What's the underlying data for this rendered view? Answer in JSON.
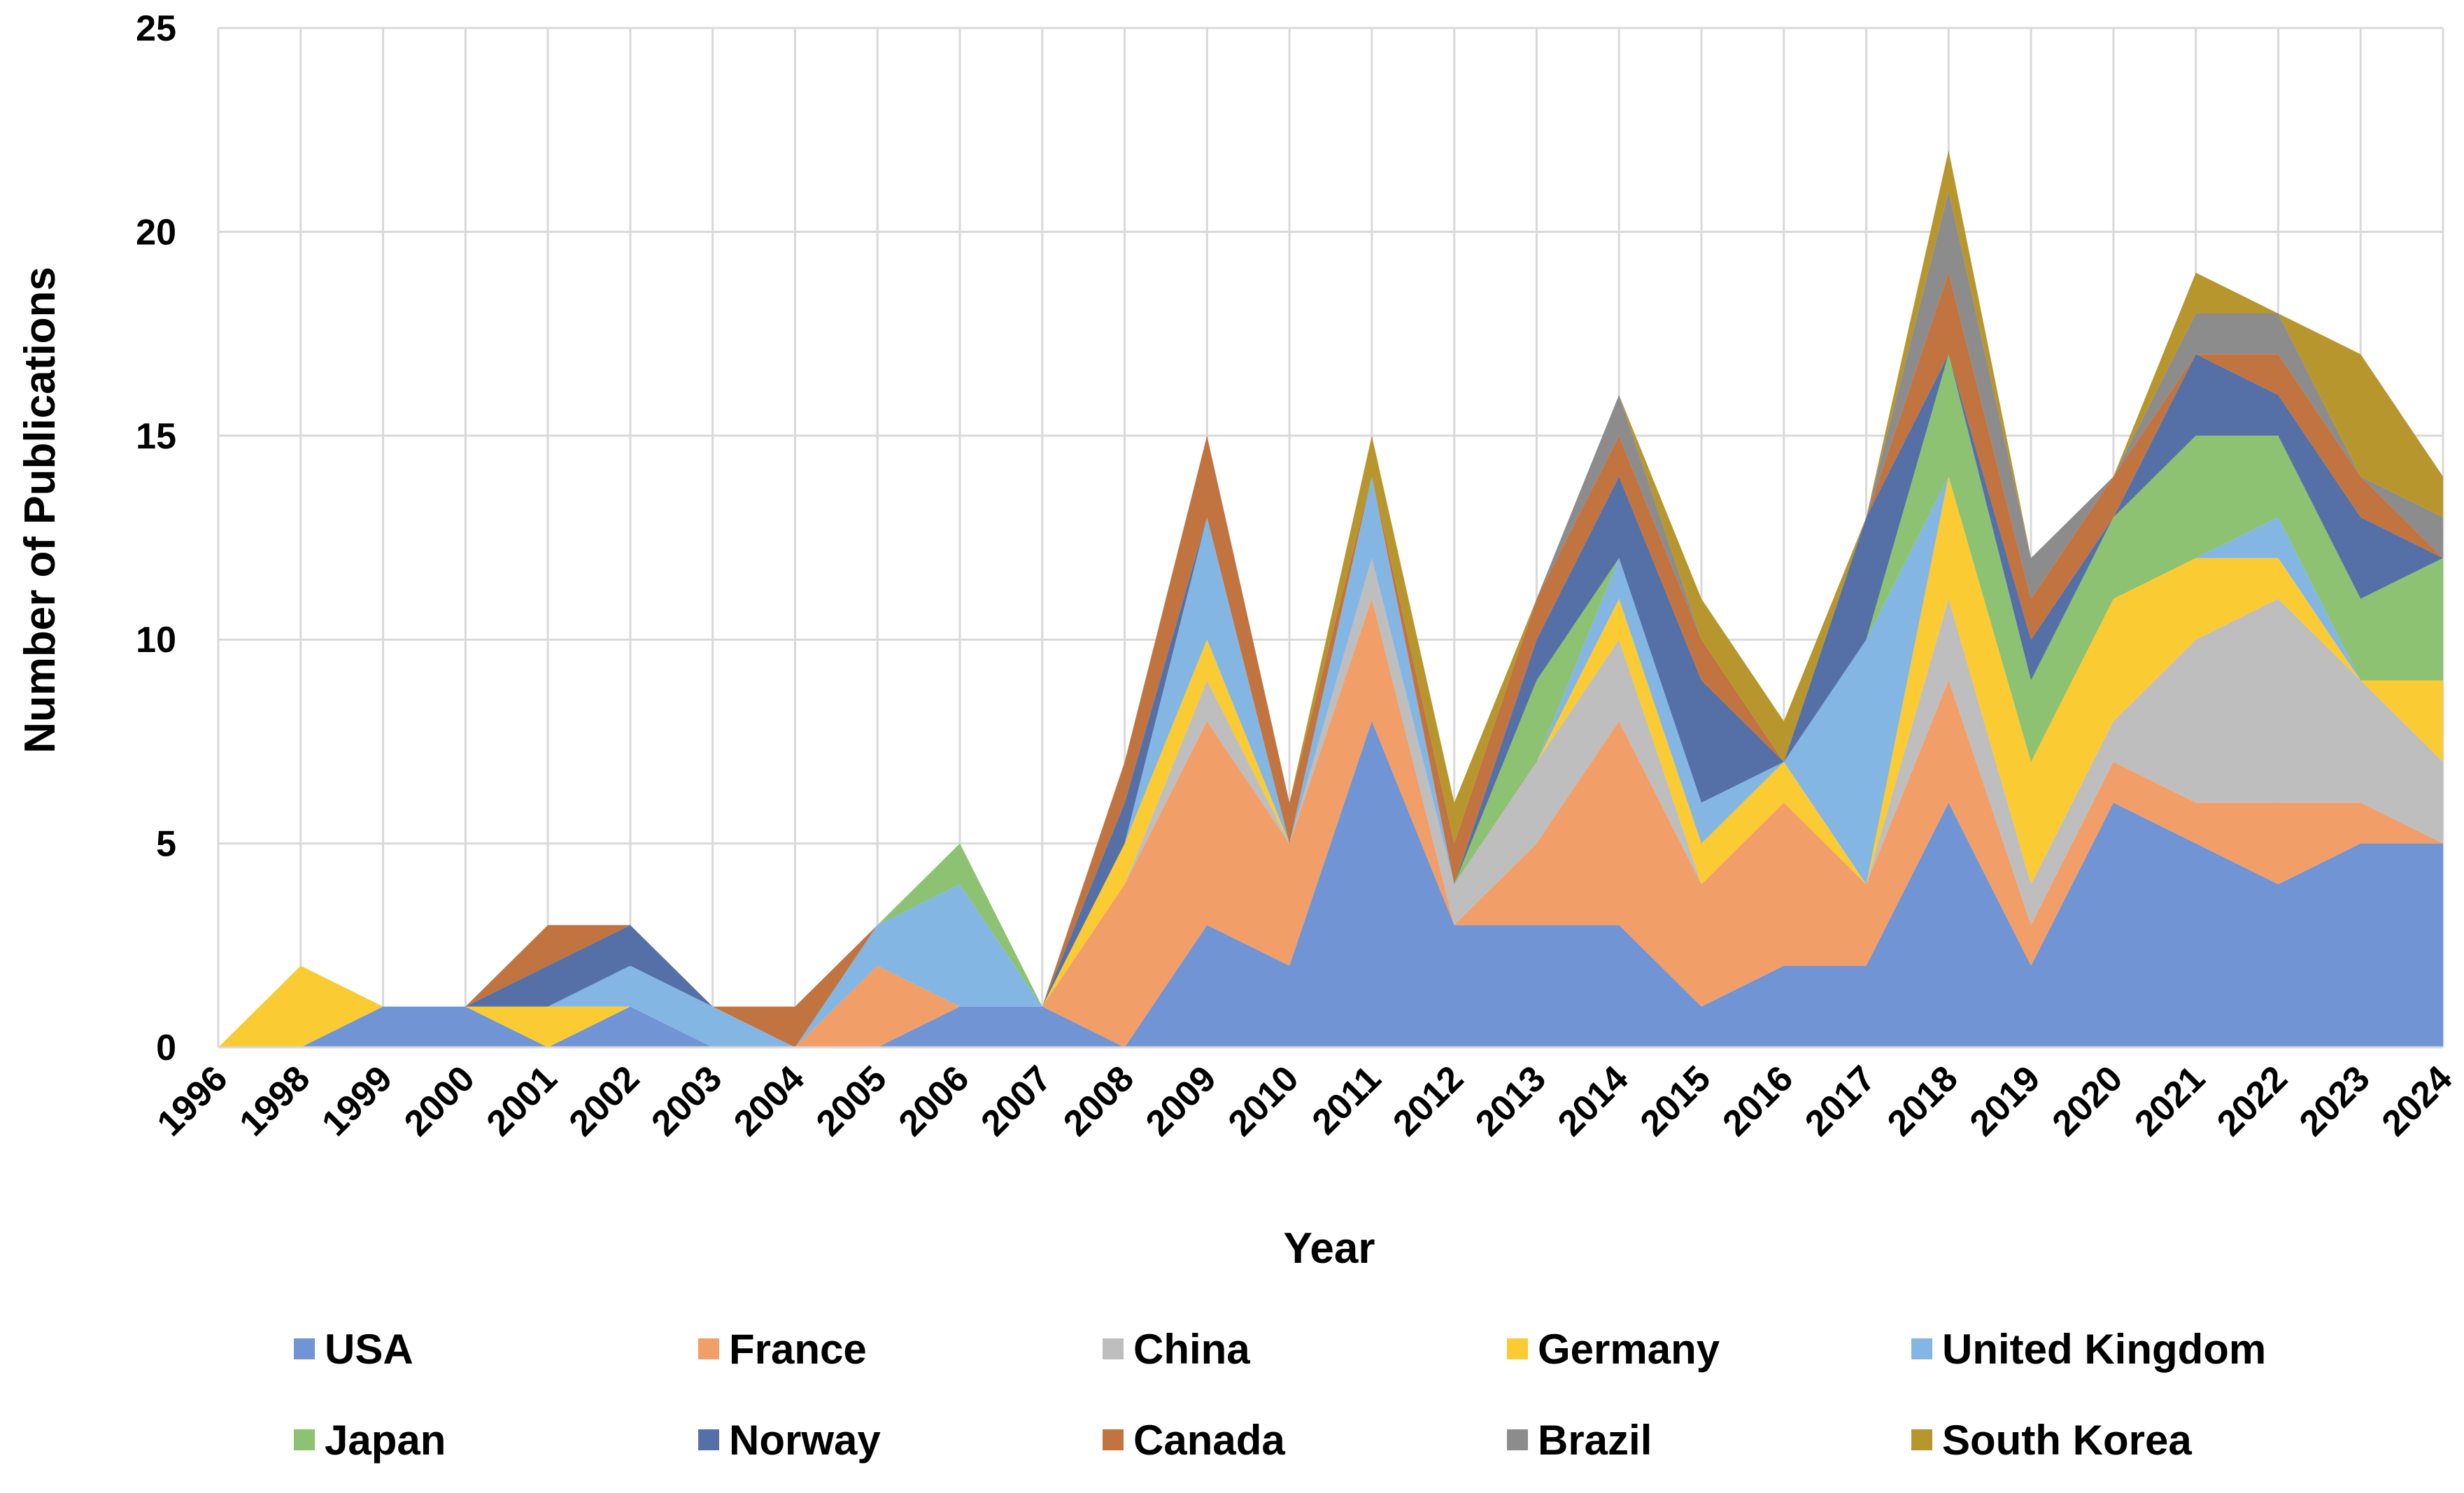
{
  "chart_data": {
    "type": "area",
    "stacked": true,
    "xlabel": "Year",
    "ylabel": "Number of Publications",
    "ylim": [
      0,
      25
    ],
    "yticks": [
      "0",
      "5",
      "10",
      "15",
      "20",
      "25"
    ],
    "grid": true,
    "legend_position": "bottom",
    "categories": [
      "1996",
      "1998",
      "1999",
      "2000",
      "2001",
      "2002",
      "2003",
      "2004",
      "2005",
      "2006",
      "2007",
      "2008",
      "2009",
      "2010",
      "2011",
      "2012",
      "2013",
      "2014",
      "2015",
      "2016",
      "2017",
      "2018",
      "2019",
      "2020",
      "2021",
      "2022",
      "2023",
      "2024"
    ],
    "series": [
      {
        "name": "USA",
        "color": "#7094D4",
        "values": [
          0,
          0,
          1,
          1,
          0,
          1,
          0,
          0,
          0,
          1,
          1,
          0,
          3,
          2,
          8,
          3,
          3,
          3,
          1,
          2,
          2,
          6,
          2,
          6,
          5,
          4,
          5,
          5
        ]
      },
      {
        "name": "France",
        "color": "#F19E68",
        "values": [
          0,
          0,
          0,
          0,
          0,
          0,
          0,
          0,
          2,
          0,
          0,
          4,
          5,
          3,
          3,
          0,
          2,
          5,
          3,
          4,
          2,
          3,
          1,
          1,
          1,
          2,
          1,
          0
        ]
      },
      {
        "name": "China",
        "color": "#BEBEBE",
        "values": [
          0,
          0,
          0,
          0,
          0,
          0,
          0,
          0,
          0,
          0,
          0,
          0,
          1,
          0,
          1,
          1,
          2,
          2,
          0,
          0,
          0,
          2,
          1,
          1,
          4,
          5,
          3,
          2
        ]
      },
      {
        "name": "Germany",
        "color": "#FBCB33",
        "values": [
          0,
          2,
          0,
          0,
          1,
          0,
          0,
          0,
          0,
          0,
          0,
          1,
          1,
          0,
          0,
          0,
          0,
          1,
          1,
          1,
          0,
          3,
          3,
          3,
          2,
          1,
          0,
          2
        ]
      },
      {
        "name": "United Kingdom",
        "color": "#84B6E4",
        "values": [
          0,
          0,
          0,
          0,
          0,
          1,
          1,
          0,
          1,
          3,
          0,
          0,
          3,
          0,
          2,
          0,
          0,
          1,
          1,
          0,
          6,
          0,
          0,
          0,
          0,
          1,
          0,
          0
        ]
      },
      {
        "name": "Japan",
        "color": "#8CC272",
        "values": [
          0,
          0,
          0,
          0,
          0,
          0,
          0,
          0,
          0,
          1,
          0,
          0,
          0,
          0,
          0,
          0,
          2,
          0,
          0,
          0,
          0,
          3,
          2,
          2,
          3,
          2,
          2,
          3
        ]
      },
      {
        "name": "Norway",
        "color": "#5570A6",
        "values": [
          0,
          0,
          0,
          0,
          1,
          1,
          0,
          0,
          0,
          0,
          0,
          1,
          0,
          0,
          0,
          0,
          1,
          2,
          3,
          0,
          3,
          0,
          1,
          0,
          2,
          1,
          2,
          0
        ]
      },
      {
        "name": "Canada",
        "color": "#C1743F",
        "values": [
          0,
          0,
          0,
          0,
          1,
          0,
          0,
          1,
          0,
          0,
          0,
          1,
          2,
          1,
          0,
          1,
          1,
          1,
          1,
          0,
          0,
          2,
          1,
          1,
          0,
          1,
          1,
          0
        ]
      },
      {
        "name": "Brazil",
        "color": "#8C8C8C",
        "values": [
          0,
          0,
          0,
          0,
          0,
          0,
          0,
          0,
          0,
          0,
          0,
          0,
          0,
          0,
          0,
          0,
          0,
          1,
          0,
          0,
          0,
          2,
          1,
          0,
          1,
          1,
          0,
          1
        ]
      },
      {
        "name": "South Korea",
        "color": "#B8962E",
        "values": [
          0,
          0,
          0,
          0,
          0,
          0,
          0,
          0,
          0,
          0,
          0,
          0,
          0,
          0,
          1,
          1,
          0,
          0,
          1,
          1,
          0,
          1,
          0,
          0,
          1,
          0,
          3,
          1
        ]
      }
    ]
  }
}
